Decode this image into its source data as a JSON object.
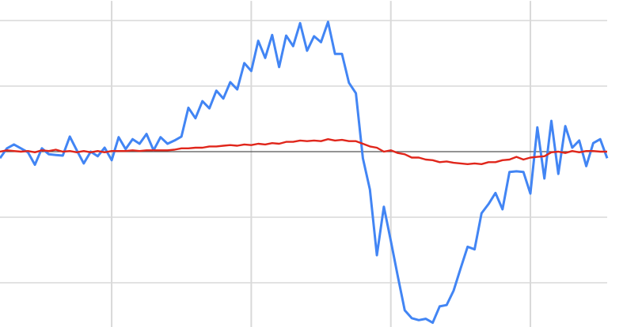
{
  "chart_data": {
    "type": "line",
    "title": "",
    "xlabel": "",
    "ylabel": "",
    "grid": true,
    "x_range": [
      0,
      87
    ],
    "ylim": [
      -2.66,
      2.3
    ],
    "vertical_gridlines_at_x": [
      16,
      36,
      56,
      76
    ],
    "horizontal_gridlines_at_y": [
      2,
      1,
      0,
      -1,
      -2
    ],
    "zero_line": true,
    "colors": {
      "series_1": "#4285f4",
      "series_2": "#e0261b",
      "grid": "#d9d9d9",
      "zero_line": "#555555"
    },
    "series": [
      {
        "values": [
          -0.1,
          0.05,
          0.11,
          0.05,
          -0.01,
          -0.2,
          0.05,
          -0.04,
          -0.05,
          -0.06,
          0.23,
          0.02,
          -0.18,
          0.0,
          -0.07,
          0.06,
          -0.13,
          0.22,
          0.04,
          0.19,
          0.12,
          0.27,
          0.02,
          0.22,
          0.12,
          0.17,
          0.23,
          0.67,
          0.51,
          0.77,
          0.66,
          0.93,
          0.81,
          1.06,
          0.95,
          1.35,
          1.23,
          1.69,
          1.43,
          1.78,
          1.29,
          1.77,
          1.61,
          1.96,
          1.54,
          1.76,
          1.67,
          1.98,
          1.49,
          1.49,
          1.05,
          0.89,
          -0.1,
          -0.58,
          -1.58,
          -0.84,
          -1.36,
          -1.9,
          -2.42,
          -2.54,
          -2.57,
          -2.55,
          -2.61,
          -2.36,
          -2.34,
          -2.12,
          -1.78,
          -1.45,
          -1.49,
          -0.94,
          -0.8,
          -0.63,
          -0.88,
          -0.31,
          -0.3,
          -0.31,
          -0.64,
          0.37,
          -0.41,
          0.47,
          -0.34,
          0.39,
          0.06,
          0.17,
          -0.22,
          0.13,
          0.19,
          -0.1
        ]
      },
      {
        "values": [
          0,
          0.02,
          0.01,
          0,
          0.01,
          -0.01,
          0.02,
          0.01,
          0.03,
          0,
          0.01,
          -0.01,
          0.01,
          -0.01,
          0.01,
          -0.01,
          0.01,
          0.01,
          0.01,
          0.02,
          0.01,
          0.02,
          0.02,
          0.02,
          0.02,
          0.03,
          0.05,
          0.05,
          0.06,
          0.06,
          0.08,
          0.08,
          0.09,
          0.1,
          0.09,
          0.11,
          0.1,
          0.12,
          0.11,
          0.13,
          0.12,
          0.15,
          0.15,
          0.17,
          0.16,
          0.17,
          0.16,
          0.19,
          0.17,
          0.18,
          0.16,
          0.16,
          0.12,
          0.08,
          0.06,
          0,
          0.02,
          -0.02,
          -0.04,
          -0.09,
          -0.09,
          -0.12,
          -0.13,
          -0.16,
          -0.15,
          -0.17,
          -0.18,
          -0.19,
          -0.18,
          -0.19,
          -0.16,
          -0.16,
          -0.13,
          -0.12,
          -0.08,
          -0.12,
          -0.09,
          -0.08,
          -0.07,
          -0.01,
          0,
          -0.02,
          0.01,
          -0.01,
          0.01,
          0.01,
          0,
          0
        ]
      }
    ]
  }
}
